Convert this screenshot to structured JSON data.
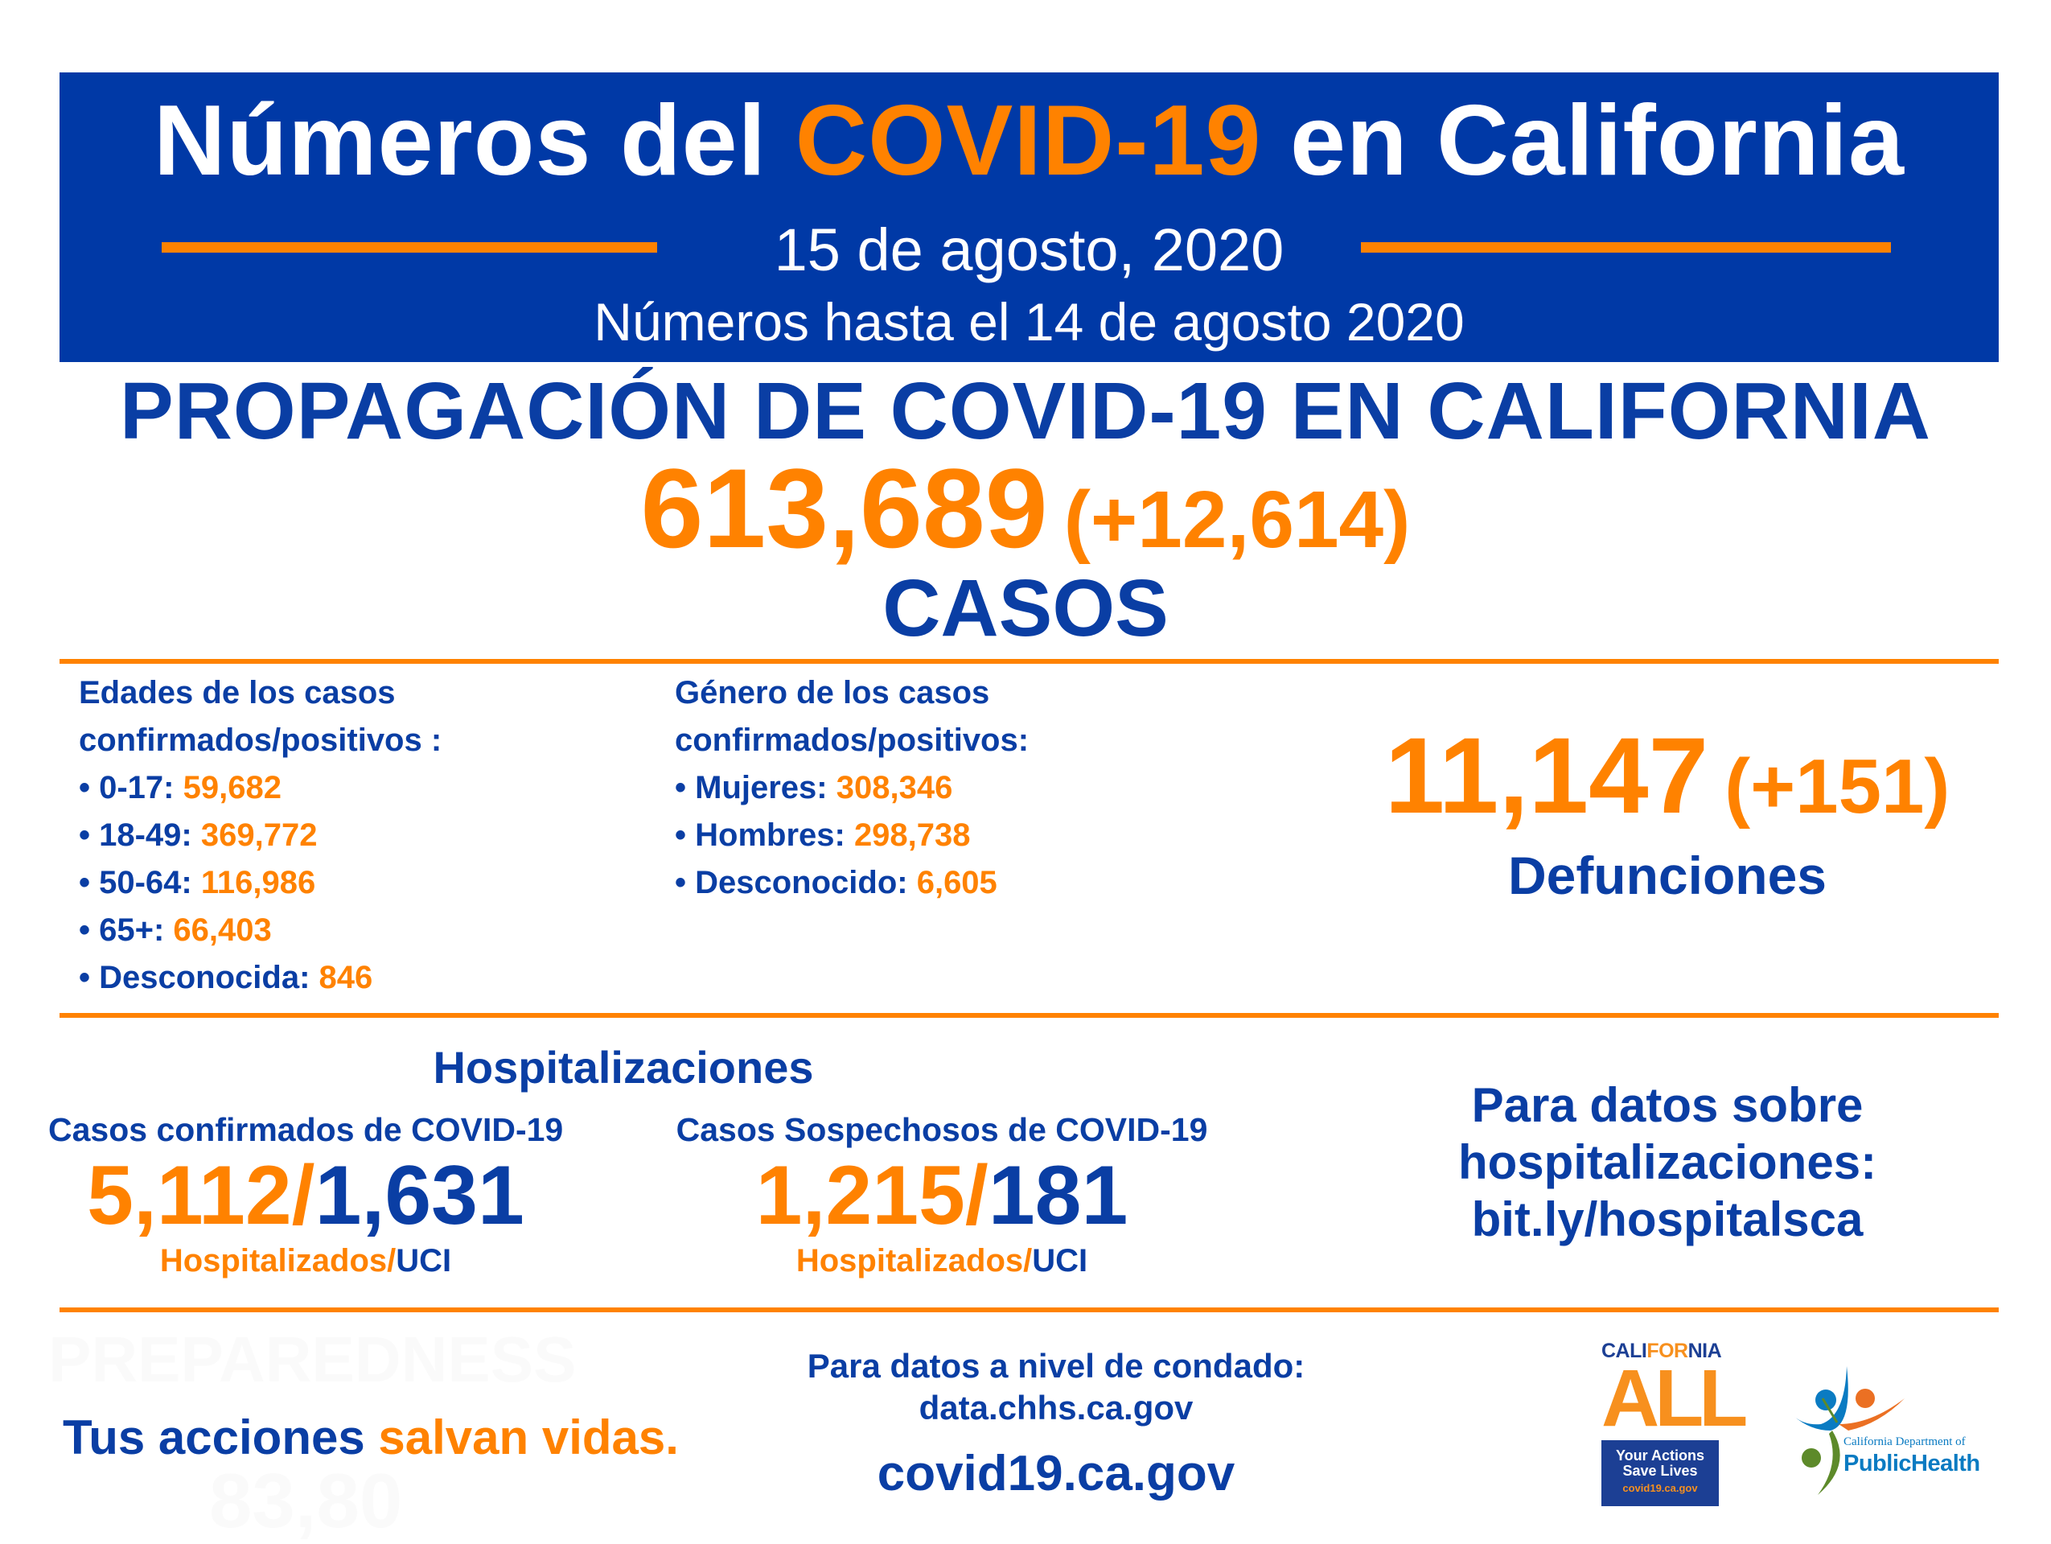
{
  "header": {
    "title_pre": "Números del ",
    "title_highlight": "COVID-19",
    "title_post": " en California",
    "date": "15 de agosto, 2020",
    "as_of": "Números hasta el 14 de agosto 2020"
  },
  "spread": {
    "heading": "PROPAGACIÓN DE COVID-19 EN CALIFORNIA",
    "total_cases": "613,689",
    "new_cases": "(+12,614)",
    "label": "CASOS"
  },
  "ages": {
    "title_line1": "Edades de los casos",
    "title_line2": "confirmados/positivos :",
    "items": [
      {
        "label": "• 0-17: ",
        "value": "59,682"
      },
      {
        "label": "• 18-49: ",
        "value": "369,772"
      },
      {
        "label": "• 50-64: ",
        "value": "116,986"
      },
      {
        "label": "• 65+: ",
        "value": "66,403"
      },
      {
        "label": "• Desconocida: ",
        "value": "846"
      }
    ]
  },
  "gender": {
    "title_line1": "Género de los casos",
    "title_line2": "confirmados/positivos:",
    "items": [
      {
        "label": "• Mujeres: ",
        "value": "308,346"
      },
      {
        "label": "• Hombres: ",
        "value": "298,738"
      },
      {
        "label": "• Desconocido: ",
        "value": "6,605"
      }
    ]
  },
  "deaths": {
    "total": "11,147",
    "new": "(+151)",
    "label": "Defunciones"
  },
  "hospital": {
    "title": "Hospitalizaciones",
    "confirmed": {
      "label": "Casos confirmados de COVID-19",
      "hospitalized": "5,112",
      "slash": "/",
      "icu": "1,631",
      "hosp_label": "Hospitalizados/",
      "icu_label": "UCI"
    },
    "suspected": {
      "label": "Casos Sospechosos de COVID-19",
      "hospitalized": "1,215",
      "slash": "/",
      "icu": "181",
      "hosp_label": "Hospitalizados/",
      "icu_label": "UCI"
    },
    "link_line1": "Para datos sobre",
    "link_line2": "hospitalizaciones:",
    "link_url": "bit.ly/hospitalsca"
  },
  "footer": {
    "slogan_blue": "Tus acciones ",
    "slogan_orange": "salvan vidas.",
    "watermark_line1": "PREPAREDNESS",
    "watermark_line2": "83,80",
    "county_label": "Para datos a nivel de condado:",
    "county_url": "data.chhs.ca.gov",
    "site_url": "covid19.ca.gov"
  },
  "logos": {
    "ca_all": {
      "cali": "CALI",
      "for": "FOR",
      "nia": "NIA",
      "all": "ALL",
      "line1": "Your Actions",
      "line2": "Save Lives",
      "url": "covid19.ca.gov"
    },
    "cdph": {
      "line1": "California Department of",
      "line2": "PublicHealth"
    }
  },
  "colors": {
    "blue": "#0a3ea4",
    "banner": "#0039a6",
    "orange": "#ff8200"
  }
}
